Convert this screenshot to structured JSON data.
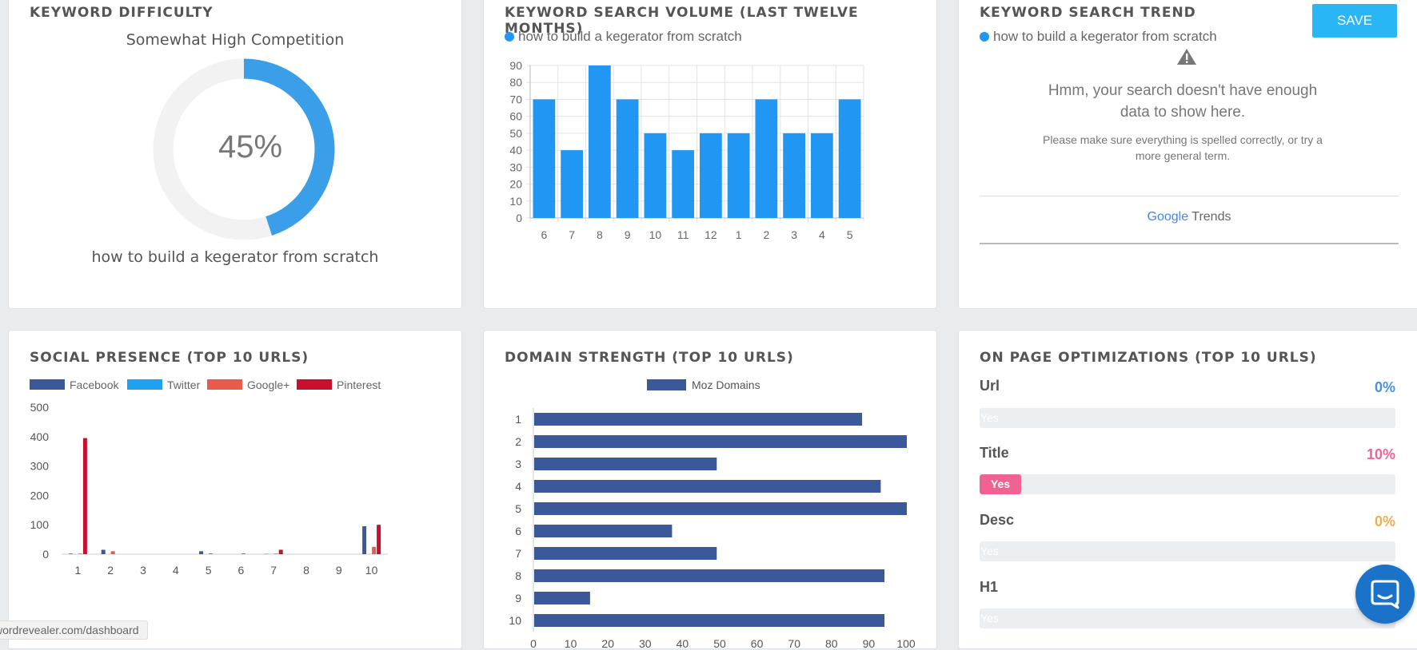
{
  "colors": {
    "accent": "#2196f3",
    "donut": "#3a9ee8",
    "donut_track": "#f2f2f2",
    "save": "#29b6f6",
    "facebook": "#3b5998",
    "twitter": "#1da1f2",
    "googleplus": "#ea5a4b",
    "pinterest": "#c8102e",
    "moz": "#3b5998"
  },
  "difficulty": {
    "title": "KEYWORD DIFFICULTY",
    "label": "Somewhat High Competition",
    "percent_text": "45%",
    "percent": 45,
    "keyword": "how to build a kegerator from scratch"
  },
  "volume": {
    "title": "KEYWORD SEARCH VOLUME (LAST TWELVE MONTHS)",
    "legend": "how to build a kegerator from scratch"
  },
  "trend": {
    "title": "KEYWORD SEARCH TREND",
    "legend": "how to build a kegerator from scratch",
    "save_label": "SAVE",
    "warning_icon": "warning-triangle-icon",
    "message": "Hmm, your search doesn't have enough data to show here.",
    "hint": "Please make sure everything is spelled correctly, or try a more general term.",
    "footer_google": "Google",
    "footer_trends": "Trends"
  },
  "social": {
    "title": "SOCIAL PRESENCE (TOP 10 URLS)"
  },
  "domain": {
    "title": "DOMAIN STRENGTH (TOP 10 URLS)"
  },
  "onpage": {
    "title": "ON PAGE OPTIMIZATIONS (TOP 10 URLS)",
    "items": [
      {
        "label": "Url",
        "percent_text": "0%",
        "value": 0,
        "bar_text": "Yes",
        "color": "#4a90d9"
      },
      {
        "label": "Title",
        "percent_text": "10%",
        "value": 10,
        "bar_text": "Yes",
        "color": "#f06292"
      },
      {
        "label": "Desc",
        "percent_text": "0%",
        "value": 0,
        "bar_text": "Yes",
        "color": "#f0ad4e"
      },
      {
        "label": "H1",
        "percent_text": "",
        "value": 0,
        "bar_text": "Yes",
        "color": "#4a90d9"
      }
    ]
  },
  "statusbar": {
    "url": "wordrevealer.com/dashboard"
  },
  "chat": {
    "icon": "chat-bubble-icon"
  },
  "chart_data": [
    {
      "type": "bar",
      "title": "KEYWORD SEARCH VOLUME (LAST TWELVE MONTHS)",
      "categories": [
        "6",
        "7",
        "8",
        "9",
        "10",
        "11",
        "12",
        "1",
        "2",
        "3",
        "4",
        "5"
      ],
      "series": [
        {
          "name": "how to build a kegerator from scratch",
          "values": [
            70,
            40,
            90,
            70,
            50,
            40,
            50,
            50,
            70,
            50,
            50,
            70
          ]
        }
      ],
      "ylim": [
        0,
        90
      ],
      "yticks": [
        "0",
        "10",
        "20",
        "30",
        "40",
        "50",
        "60",
        "70",
        "80",
        "90"
      ],
      "grid": true
    },
    {
      "type": "bar",
      "title": "SOCIAL PRESENCE (TOP 10 URLS)",
      "categories": [
        "1",
        "2",
        "3",
        "4",
        "5",
        "6",
        "7",
        "8",
        "9",
        "10"
      ],
      "series": [
        {
          "name": "Facebook",
          "values": [
            2,
            15,
            0,
            0,
            10,
            0,
            1,
            0,
            0,
            95
          ]
        },
        {
          "name": "Twitter",
          "values": [
            0,
            0,
            0,
            0,
            0,
            0,
            0,
            0,
            0,
            0
          ]
        },
        {
          "name": "Google+",
          "values": [
            2,
            10,
            0,
            0,
            3,
            3,
            2,
            0,
            0,
            25
          ]
        },
        {
          "name": "Pinterest",
          "values": [
            395,
            0,
            0,
            0,
            0,
            0,
            15,
            0,
            0,
            100
          ]
        }
      ],
      "ylim": [
        0,
        500
      ],
      "yticks": [
        "0",
        "100",
        "200",
        "300",
        "400",
        "500"
      ],
      "legend": "top"
    },
    {
      "type": "bar",
      "orientation": "horizontal",
      "title": "DOMAIN STRENGTH (TOP 10 URLS)",
      "categories": [
        "1",
        "2",
        "3",
        "4",
        "5",
        "6",
        "7",
        "8",
        "9",
        "10"
      ],
      "series": [
        {
          "name": "Moz Domains",
          "values": [
            88,
            100,
            49,
            93,
            100,
            37,
            49,
            94,
            15,
            94
          ]
        }
      ],
      "xlim": [
        0,
        100
      ],
      "xticks": [
        "0",
        "10",
        "20",
        "30",
        "40",
        "50",
        "60",
        "70",
        "80",
        "90",
        "100"
      ],
      "legend": "top"
    }
  ]
}
